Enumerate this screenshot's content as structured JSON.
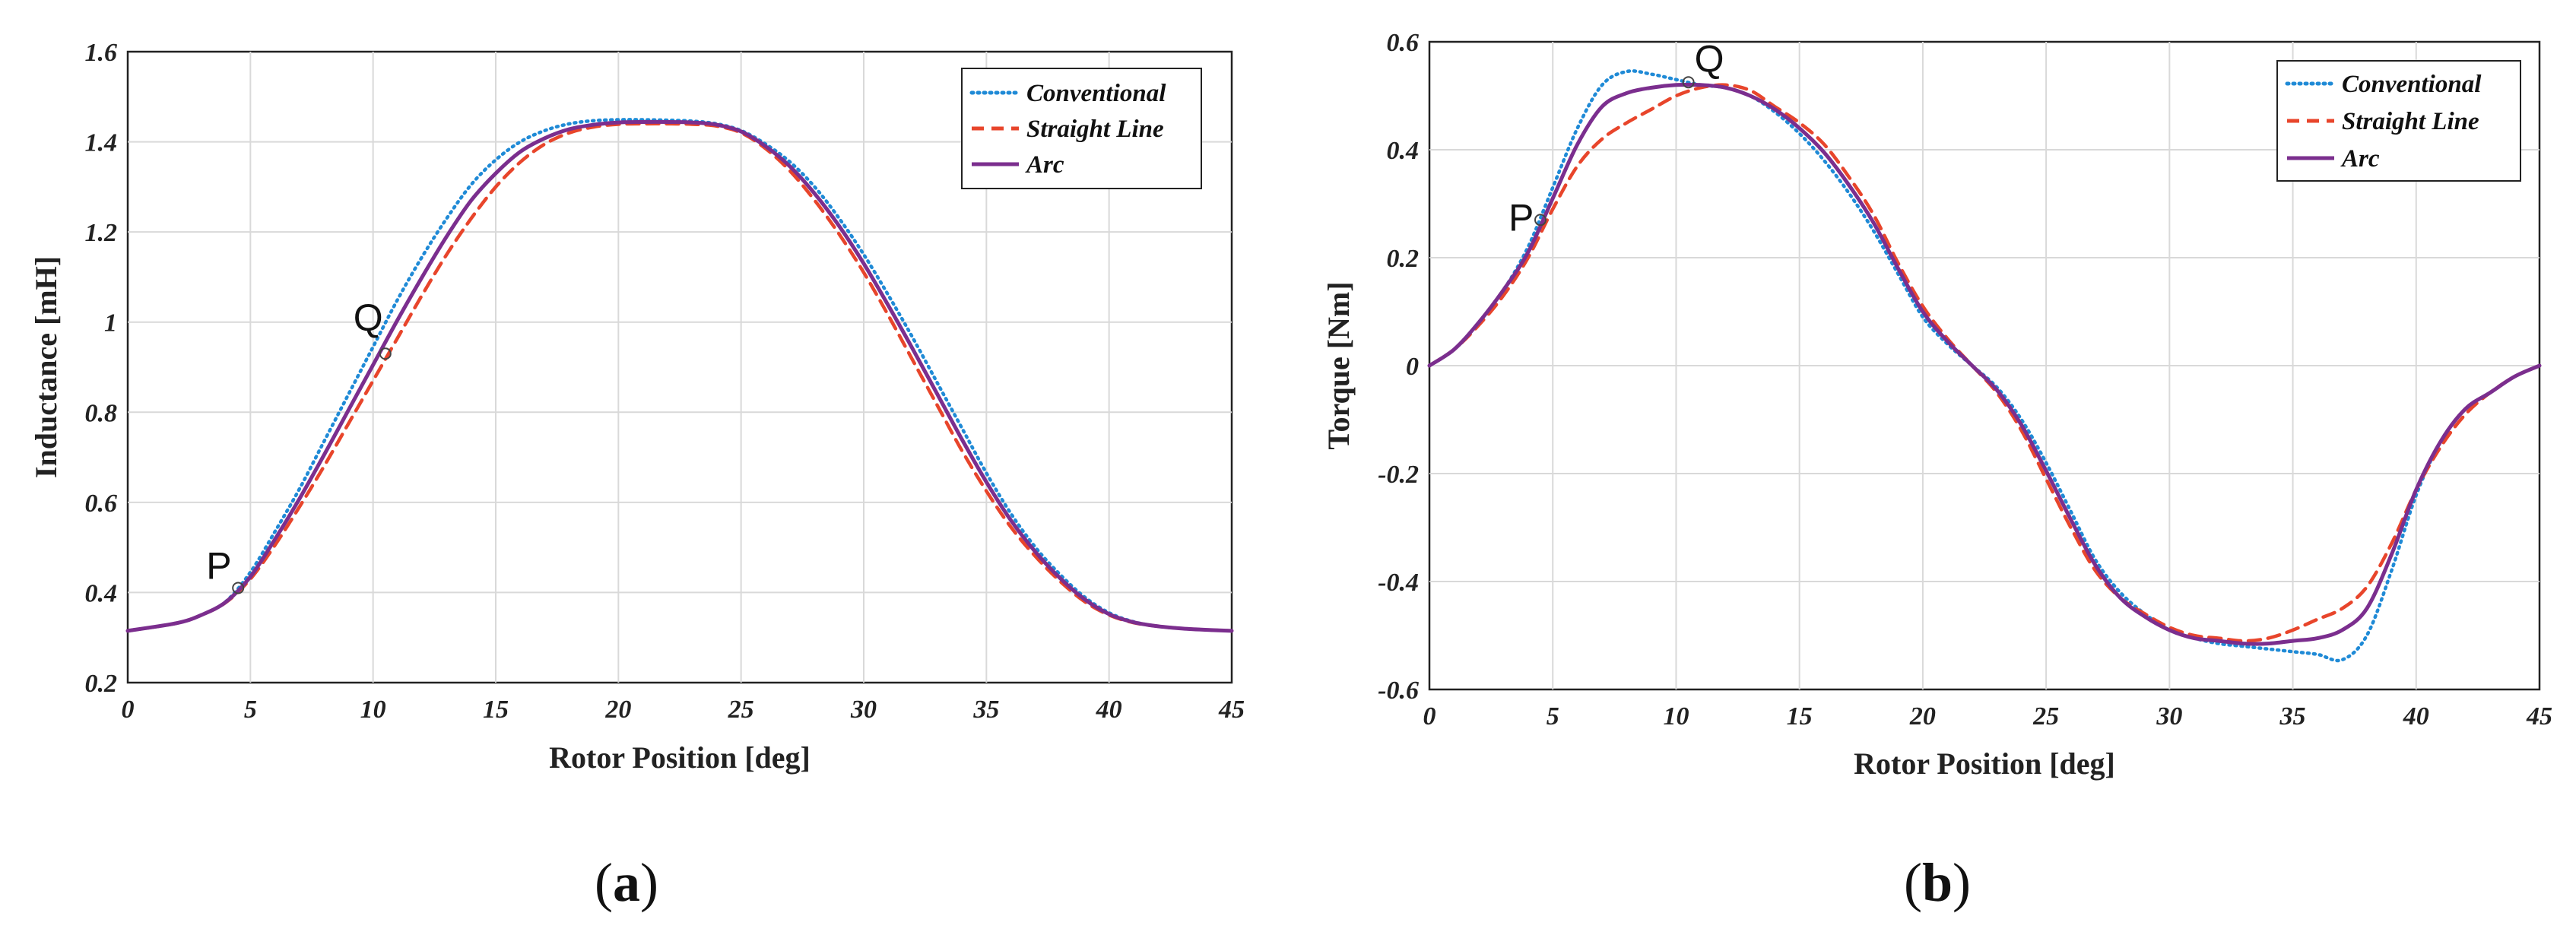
{
  "chart_data": [
    {
      "type": "line",
      "panel": "a",
      "xlabel": "Rotor Position [deg]",
      "ylabel": "Inductance [mH]",
      "xlim": [
        0,
        45
      ],
      "ylim": [
        0.2,
        1.6
      ],
      "xticks": [
        0,
        5,
        10,
        15,
        20,
        25,
        30,
        35,
        40,
        45
      ],
      "yticks": [
        0.2,
        0.4,
        0.6,
        0.8,
        1,
        1.2,
        1.4,
        1.6
      ],
      "xtick_labels": [
        "0",
        "5",
        "10",
        "15",
        "20",
        "25",
        "30",
        "35",
        "40",
        "45"
      ],
      "ytick_labels": [
        "0.2",
        "0.4",
        "0.6",
        "0.8",
        "1",
        "1.2",
        "1.4",
        "1.6"
      ],
      "grid": true,
      "legend_position": "top-right",
      "x": [
        0,
        2,
        3,
        4,
        5,
        6,
        7,
        8,
        9,
        10,
        11,
        12,
        13,
        14,
        15,
        16,
        17,
        18,
        19,
        20,
        21,
        22,
        23,
        24,
        25,
        26,
        27,
        28,
        29,
        30,
        31,
        32,
        33,
        34,
        35,
        36,
        37,
        38,
        39,
        40,
        41,
        42,
        43,
        44,
        45
      ],
      "series": [
        {
          "name": "Conventional",
          "color": "#1f8ad6",
          "style": "dotted",
          "values": [
            0.315,
            0.332,
            0.35,
            0.38,
            0.445,
            0.535,
            0.63,
            0.735,
            0.84,
            0.945,
            1.05,
            1.145,
            1.23,
            1.305,
            1.36,
            1.4,
            1.425,
            1.44,
            1.447,
            1.449,
            1.449,
            1.448,
            1.446,
            1.44,
            1.425,
            1.395,
            1.355,
            1.3,
            1.23,
            1.15,
            1.06,
            0.965,
            0.865,
            0.765,
            0.665,
            0.575,
            0.5,
            0.44,
            0.39,
            0.355,
            0.335,
            0.325,
            0.32,
            0.317,
            0.315
          ]
        },
        {
          "name": "Straight Line",
          "color": "#e8452b",
          "style": "dashed",
          "values": [
            0.315,
            0.332,
            0.35,
            0.378,
            0.43,
            0.505,
            0.59,
            0.68,
            0.775,
            0.87,
            0.965,
            1.06,
            1.15,
            1.23,
            1.3,
            1.355,
            1.395,
            1.42,
            1.433,
            1.439,
            1.44,
            1.44,
            1.439,
            1.435,
            1.42,
            1.385,
            1.335,
            1.27,
            1.195,
            1.11,
            1.015,
            0.915,
            0.815,
            0.715,
            0.625,
            0.545,
            0.48,
            0.425,
            0.38,
            0.35,
            0.333,
            0.325,
            0.32,
            0.317,
            0.315
          ]
        },
        {
          "name": "Arc",
          "color": "#7b2e8e",
          "style": "solid",
          "values": [
            0.315,
            0.332,
            0.35,
            0.379,
            0.435,
            0.518,
            0.608,
            0.705,
            0.805,
            0.905,
            1.005,
            1.1,
            1.19,
            1.27,
            1.33,
            1.378,
            1.408,
            1.428,
            1.438,
            1.443,
            1.444,
            1.444,
            1.443,
            1.438,
            1.423,
            1.39,
            1.345,
            1.285,
            1.213,
            1.13,
            1.037,
            0.94,
            0.84,
            0.74,
            0.645,
            0.56,
            0.49,
            0.432,
            0.385,
            0.352,
            0.334,
            0.325,
            0.32,
            0.317,
            0.315
          ]
        }
      ],
      "annotations": [
        {
          "label": "P",
          "x": 4.5,
          "y": 0.41
        },
        {
          "label": "Q",
          "x": 10.5,
          "y": 0.93
        }
      ],
      "caption_letter": "a"
    },
    {
      "type": "line",
      "panel": "b",
      "xlabel": "Rotor Position [deg]",
      "ylabel": "Torque [Nm]",
      "xlim": [
        0,
        45
      ],
      "ylim": [
        -0.6,
        0.6
      ],
      "xticks": [
        0,
        5,
        10,
        15,
        20,
        25,
        30,
        35,
        40,
        45
      ],
      "yticks": [
        -0.6,
        -0.4,
        -0.2,
        0,
        0.2,
        0.4,
        0.6
      ],
      "xtick_labels": [
        "0",
        "5",
        "10",
        "15",
        "20",
        "25",
        "30",
        "35",
        "40",
        "45"
      ],
      "ytick_labels": [
        "-0.6",
        "-0.4",
        "-0.2",
        "0",
        "0.2",
        "0.4",
        "0.6"
      ],
      "grid": true,
      "legend_position": "top-right",
      "x": [
        0,
        1,
        2,
        3,
        4,
        5,
        6,
        7,
        8,
        9,
        10,
        11,
        12,
        13,
        14,
        15,
        16,
        17,
        18,
        19,
        20,
        21,
        22,
        23,
        24,
        25,
        26,
        27,
        28,
        29,
        30,
        31,
        32,
        33,
        34,
        35,
        36,
        37,
        38,
        39,
        40,
        41,
        42,
        43,
        44,
        45
      ],
      "series": [
        {
          "name": "Conventional",
          "color": "#1f8ad6",
          "style": "dotted",
          "values": [
            0,
            0.03,
            0.08,
            0.14,
            0.22,
            0.33,
            0.44,
            0.52,
            0.545,
            0.54,
            0.53,
            0.52,
            0.515,
            0.5,
            0.47,
            0.43,
            0.38,
            0.32,
            0.25,
            0.17,
            0.09,
            0.04,
            0.0,
            -0.04,
            -0.1,
            -0.18,
            -0.27,
            -0.36,
            -0.42,
            -0.46,
            -0.49,
            -0.505,
            -0.515,
            -0.52,
            -0.525,
            -0.53,
            -0.535,
            -0.545,
            -0.5,
            -0.38,
            -0.24,
            -0.14,
            -0.08,
            -0.05,
            -0.02,
            0
          ]
        },
        {
          "name": "Straight Line",
          "color": "#e8452b",
          "style": "dashed",
          "values": [
            0,
            0.03,
            0.075,
            0.13,
            0.2,
            0.29,
            0.37,
            0.42,
            0.45,
            0.475,
            0.5,
            0.515,
            0.52,
            0.51,
            0.48,
            0.45,
            0.41,
            0.35,
            0.28,
            0.19,
            0.11,
            0.05,
            0.0,
            -0.05,
            -0.12,
            -0.21,
            -0.3,
            -0.38,
            -0.43,
            -0.46,
            -0.485,
            -0.5,
            -0.505,
            -0.51,
            -0.505,
            -0.49,
            -0.47,
            -0.45,
            -0.41,
            -0.33,
            -0.23,
            -0.15,
            -0.09,
            -0.05,
            -0.02,
            0
          ]
        },
        {
          "name": "Arc",
          "color": "#7b2e8e",
          "style": "solid",
          "values": [
            0,
            0.03,
            0.08,
            0.14,
            0.21,
            0.31,
            0.41,
            0.48,
            0.505,
            0.515,
            0.52,
            0.52,
            0.515,
            0.5,
            0.475,
            0.44,
            0.395,
            0.335,
            0.265,
            0.18,
            0.1,
            0.045,
            0.0,
            -0.045,
            -0.11,
            -0.195,
            -0.285,
            -0.37,
            -0.43,
            -0.465,
            -0.49,
            -0.505,
            -0.51,
            -0.515,
            -0.515,
            -0.51,
            -0.505,
            -0.49,
            -0.45,
            -0.35,
            -0.23,
            -0.14,
            -0.08,
            -0.05,
            -0.02,
            0
          ]
        }
      ],
      "annotations": [
        {
          "label": "P",
          "x": 4.5,
          "y": 0.27
        },
        {
          "label": "Q",
          "x": 10.5,
          "y": 0.525
        }
      ],
      "caption_letter": "b"
    }
  ]
}
